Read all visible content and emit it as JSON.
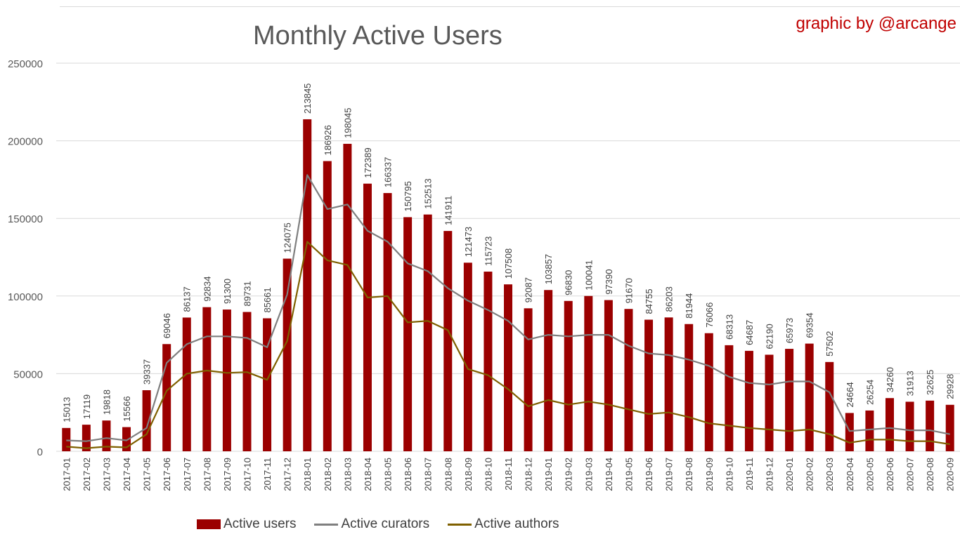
{
  "credit": "graphic by @arcange",
  "colors": {
    "users": "#9b0000",
    "curators": "#7f7f7f",
    "authors": "#7f6000",
    "grid": "#d9d9d9",
    "text": "#595959"
  },
  "legend": {
    "users": "Active users",
    "curators": "Active curators",
    "authors": "Active authors"
  },
  "chart_data": {
    "type": "bar",
    "title": "Monthly Active Users",
    "xlabel": "",
    "ylabel": "",
    "ylim": [
      0,
      250000
    ],
    "yticks": [
      "0",
      "50000",
      "100000",
      "150000",
      "200000",
      "250000"
    ],
    "grid": true,
    "legend_position": "bottom",
    "categories": [
      "2017-01",
      "2017-02",
      "2017-03",
      "2017-04",
      "2017-05",
      "2017-06",
      "2017-07",
      "2017-08",
      "2017-09",
      "2017-10",
      "2017-11",
      "2017-12",
      "2018-01",
      "2018-02",
      "2018-03",
      "2018-04",
      "2018-05",
      "2018-06",
      "2018-07",
      "2018-08",
      "2018-09",
      "2018-10",
      "2018-11",
      "2018-12",
      "2019-01",
      "2019-02",
      "2019-03",
      "2019-04",
      "2019-05",
      "2019-06",
      "2019-07",
      "2019-08",
      "2019-09",
      "2019-10",
      "2019-11",
      "2019-12",
      "2020-01",
      "2020-02",
      "2020-03",
      "2020-04",
      "2020-05",
      "2020-06",
      "2020-07",
      "2020-08",
      "2020-09"
    ],
    "series": [
      {
        "name": "Active users",
        "type": "bar",
        "values": [
          15013,
          17119,
          19818,
          15566,
          39337,
          69046,
          86137,
          92834,
          91300,
          89731,
          85661,
          124075,
          213845,
          186926,
          198045,
          172389,
          166337,
          150795,
          152513,
          141911,
          121473,
          115723,
          107508,
          92087,
          103857,
          96830,
          100041,
          97390,
          91670,
          84755,
          86203,
          81944,
          76066,
          68313,
          64687,
          62190,
          65973,
          69354,
          57502,
          24664,
          26254,
          34260,
          31913,
          32625,
          29928
        ]
      },
      {
        "name": "Active curators",
        "type": "line",
        "values": [
          7000,
          6500,
          8500,
          7000,
          15000,
          57000,
          69000,
          74000,
          74000,
          73000,
          67000,
          101000,
          178000,
          156000,
          159000,
          142000,
          135000,
          121000,
          116000,
          105000,
          97000,
          91000,
          84000,
          72000,
          75000,
          74000,
          75000,
          75000,
          68000,
          63000,
          62000,
          59000,
          55000,
          48000,
          44000,
          43000,
          45000,
          45000,
          38000,
          13000,
          14000,
          15000,
          13500,
          13500,
          11000
        ]
      },
      {
        "name": "Active authors",
        "type": "line",
        "values": [
          3000,
          2000,
          3000,
          2500,
          11000,
          39000,
          50000,
          52000,
          50500,
          51000,
          46000,
          71000,
          135000,
          123000,
          120000,
          99000,
          100000,
          83000,
          84000,
          78000,
          53000,
          49000,
          40000,
          29000,
          33000,
          30000,
          32000,
          30000,
          27000,
          24000,
          25000,
          22000,
          18000,
          16500,
          15000,
          14000,
          13000,
          14000,
          11000,
          5500,
          7500,
          7500,
          6500,
          6500,
          4500
        ]
      }
    ]
  }
}
